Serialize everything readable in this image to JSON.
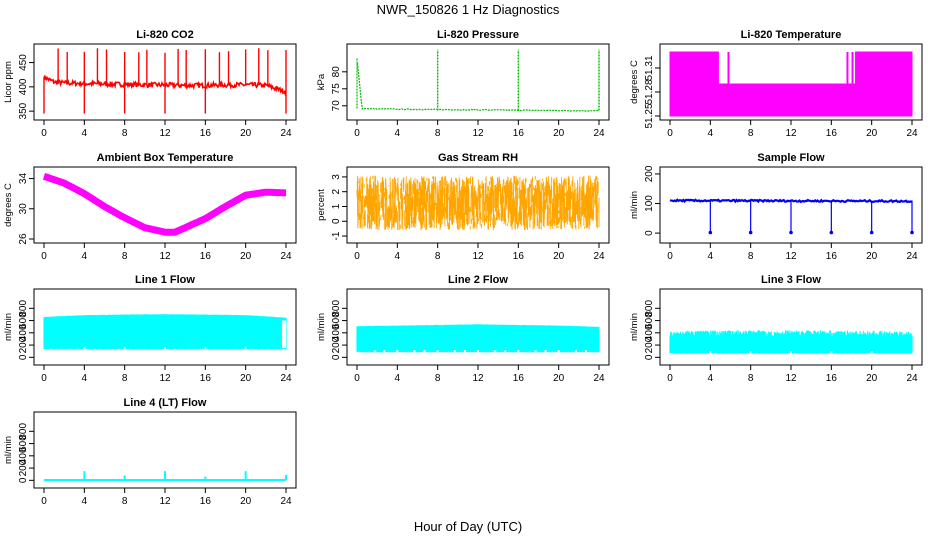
{
  "figure": {
    "title": "NWR_150826  1 Hz Diagnostics",
    "xlabel": "Hour of Day (UTC)"
  },
  "chart_data": [
    {
      "type": "line",
      "title": "Li-820 CO2",
      "ylabel": "Licor ppm",
      "color": "#ff0000",
      "xlim": [
        0,
        24
      ],
      "xticks": [
        0,
        4,
        8,
        12,
        16,
        20,
        24
      ],
      "ylim": [
        340,
        480
      ],
      "yticks": [
        350,
        400,
        450
      ],
      "series": [
        {
          "x": [
            0,
            1,
            2,
            4,
            6,
            8,
            10,
            12,
            14,
            16,
            18,
            20,
            22,
            24
          ],
          "values": [
            420,
            410,
            408,
            407,
            406,
            405,
            404,
            404,
            403,
            403,
            404,
            404,
            403,
            390
          ]
        }
      ],
      "spikes_up_at": [
        1.4,
        2.3,
        4.0,
        5.3,
        6.2,
        8.0,
        9.4,
        10.2,
        12.0,
        13.3,
        14.1,
        16.0,
        17.4,
        18.3,
        20.0,
        21.3,
        22.2,
        24.0
      ],
      "spikes_down_at": [
        0.0,
        4.0,
        8.0,
        12.0,
        16.0,
        24.0
      ]
    },
    {
      "type": "line",
      "title": "Li-820 Pressure",
      "ylabel": "kPa",
      "color": "#00bb00",
      "xlim": [
        0,
        24
      ],
      "xticks": [
        0,
        4,
        8,
        12,
        16,
        20,
        24
      ],
      "ylim": [
        67,
        87
      ],
      "yticks": [
        70,
        75,
        80
      ],
      "series": [
        {
          "x": [
            0,
            0.5,
            4,
            8,
            12,
            16,
            20,
            24
          ],
          "values": [
            84,
            69.2,
            69.0,
            68.9,
            68.8,
            68.7,
            68.6,
            68.5
          ]
        }
      ],
      "spikes_up_at": [
        8.0,
        16.0,
        24.0
      ]
    },
    {
      "type": "area",
      "title": "Li-820 Temperature",
      "ylabel": "degrees C",
      "color": "#ff00ff",
      "xlim": [
        0,
        24
      ],
      "xticks": [
        0,
        4,
        8,
        12,
        16,
        20,
        24
      ],
      "ylim": [
        51.25,
        51.335
      ],
      "yticks": [
        51.25,
        51.28,
        51.31
      ],
      "series": [
        {
          "x": [
            0,
            4.8,
            4.8,
            18.4,
            18.4,
            24
          ],
          "values": [
            51.33,
            51.33,
            51.29,
            51.29,
            51.33,
            51.33
          ]
        }
      ]
    },
    {
      "type": "line",
      "title": "Ambient Box Temperature",
      "ylabel": "degrees C",
      "color": "#ff00ff",
      "xlim": [
        0,
        24
      ],
      "xticks": [
        0,
        4,
        8,
        12,
        16,
        20,
        24
      ],
      "ylim": [
        26,
        35
      ],
      "yticks": [
        26,
        30,
        34
      ],
      "series": [
        {
          "x": [
            0,
            2,
            4,
            6,
            8,
            10,
            12,
            13,
            14,
            16,
            18,
            20,
            22,
            24
          ],
          "values": [
            34.3,
            33.4,
            32.0,
            30.3,
            28.8,
            27.5,
            26.9,
            26.9,
            27.5,
            28.7,
            30.3,
            31.8,
            32.2,
            32.1
          ]
        }
      ]
    },
    {
      "type": "scatter",
      "title": "Gas Stream RH",
      "ylabel": "percent",
      "color": "#ffa500",
      "xlim": [
        0,
        24
      ],
      "xticks": [
        0,
        4,
        8,
        12,
        16,
        20,
        24
      ],
      "ylim": [
        -1.2,
        3.4
      ],
      "yticks": [
        -1,
        0,
        1,
        2,
        3
      ],
      "band": {
        "y": [
          -0.5,
          3.0
        ]
      }
    },
    {
      "type": "line",
      "title": "Sample Flow",
      "ylabel": "ml/min",
      "color": "#0000ff",
      "xlim": [
        0,
        24
      ],
      "xticks": [
        0,
        4,
        8,
        12,
        16,
        20,
        24
      ],
      "ylim": [
        -20,
        210
      ],
      "yticks": [
        0,
        100,
        200
      ],
      "series": [
        {
          "x": [
            0,
            24
          ],
          "values": [
            110,
            108
          ]
        }
      ],
      "spikes_down_at": [
        4.0,
        8.0,
        12.0,
        16.0,
        20.0,
        24.0
      ]
    },
    {
      "type": "area",
      "title": "Line 1 Flow",
      "ylabel": "ml/min",
      "color": "#00ffff",
      "xlim": [
        0,
        24
      ],
      "xticks": [
        0,
        4,
        8,
        12,
        16,
        20,
        24
      ],
      "ylim": [
        -60,
        1050
      ],
      "yticks": [
        0,
        200,
        400,
        600,
        800
      ],
      "band": {
        "low": 130,
        "high": [
          660,
          690,
          700,
          705,
          700,
          690,
          650
        ]
      },
      "gaps_at": [
        4.0,
        8.0,
        12.0,
        16.0,
        20.0,
        24.0
      ]
    },
    {
      "type": "area",
      "title": "Line 2 Flow",
      "ylabel": "ml/min",
      "color": "#00ffff",
      "xlim": [
        0,
        24
      ],
      "xticks": [
        0,
        4,
        8,
        12,
        16,
        20,
        24
      ],
      "ylim": [
        -60,
        1050
      ],
      "yticks": [
        0,
        200,
        400,
        600,
        800
      ],
      "band": {
        "low": 80,
        "high": [
          510,
          520,
          530,
          540,
          530,
          520,
          500
        ]
      },
      "gaps_at": [
        1.8,
        2.7,
        4.0,
        5.7,
        6.7,
        8.0,
        9.7,
        10.7,
        12.0,
        13.7,
        14.7,
        16.0,
        17.7,
        18.7,
        20.0,
        21.7,
        22.7
      ]
    },
    {
      "type": "area",
      "title": "Line 3 Flow",
      "ylabel": "ml/min",
      "color": "#00ffff",
      "xlim": [
        0,
        24
      ],
      "xticks": [
        0,
        4,
        8,
        12,
        16,
        20,
        24
      ],
      "ylim": [
        -60,
        1050
      ],
      "yticks": [
        0,
        200,
        400,
        600,
        800
      ],
      "band": {
        "low": 60,
        "high": [
          430,
          440,
          445,
          440,
          440,
          435,
          420
        ]
      },
      "gaps_at": [
        4.0,
        8.0,
        12.0,
        16.0,
        20.0,
        24.0
      ]
    },
    {
      "type": "line",
      "title": "Line 4 (LT) Flow",
      "ylabel": "ml/min",
      "color": "#00ffff",
      "xlim": [
        0,
        24
      ],
      "xticks": [
        0,
        4,
        8,
        12,
        16,
        20,
        24
      ],
      "ylim": [
        -60,
        1050
      ],
      "yticks": [
        0,
        200,
        400,
        600,
        800
      ],
      "series": [
        {
          "x": [
            0,
            24
          ],
          "values": [
            5,
            5
          ]
        }
      ],
      "spikes": [
        {
          "x": 4.0,
          "y": 150
        },
        {
          "x": 8.0,
          "y": 80
        },
        {
          "x": 12.0,
          "y": 150
        },
        {
          "x": 16.0,
          "y": 60
        },
        {
          "x": 20.0,
          "y": 150
        },
        {
          "x": 24.0,
          "y": 90
        }
      ]
    }
  ]
}
